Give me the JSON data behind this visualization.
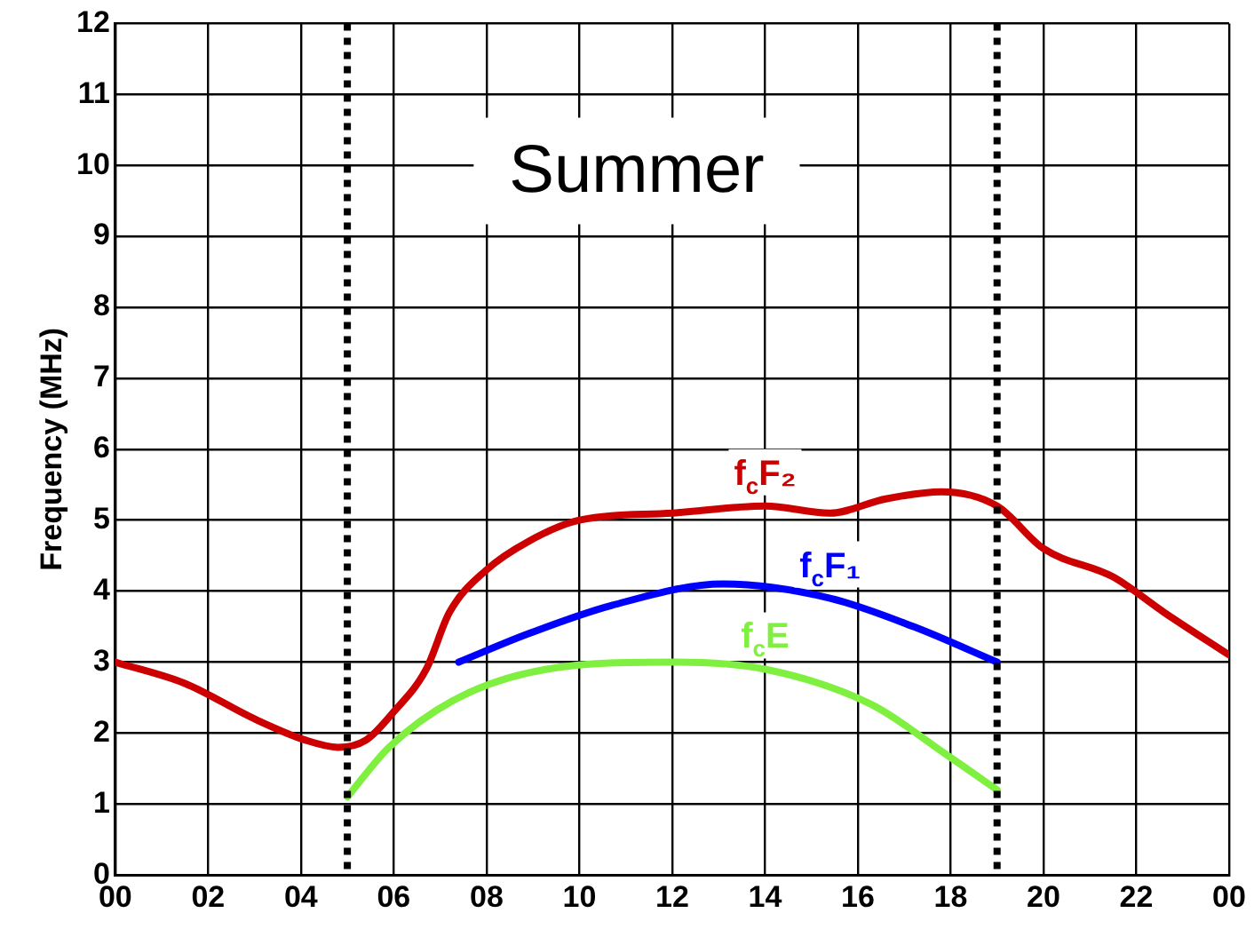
{
  "chart_data": {
    "type": "line",
    "title": "Summer",
    "ylabel": "Frequency (MHz)",
    "xlim": [
      0,
      24
    ],
    "xticks": [
      {
        "value": 0,
        "label": "00"
      },
      {
        "value": 2,
        "label": "02"
      },
      {
        "value": 4,
        "label": "04"
      },
      {
        "value": 6,
        "label": "06"
      },
      {
        "value": 8,
        "label": "08"
      },
      {
        "value": 10,
        "label": "10"
      },
      {
        "value": 12,
        "label": "12"
      },
      {
        "value": 14,
        "label": "14"
      },
      {
        "value": 16,
        "label": "16"
      },
      {
        "value": 18,
        "label": "18"
      },
      {
        "value": 20,
        "label": "20"
      },
      {
        "value": 22,
        "label": "22"
      },
      {
        "value": 24,
        "label": "00"
      }
    ],
    "ylim": [
      0,
      12
    ],
    "yticks": [
      0,
      1,
      2,
      3,
      4,
      5,
      6,
      7,
      8,
      9,
      10,
      11,
      12
    ],
    "grid": true,
    "legend": false,
    "marker": "none",
    "line_style": "solid",
    "ref_lines": [
      {
        "axis": "x",
        "value": 5,
        "color": "#000000",
        "line_style": "dotted"
      },
      {
        "axis": "x",
        "value": 19,
        "color": "#000000",
        "line_style": "dotted"
      }
    ],
    "series": [
      {
        "name": "f$_{c}$F₂",
        "color": "#cc0000",
        "x": [
          0,
          1.5,
          3,
          4.1,
          4.8,
          5.4,
          6,
          6.7,
          7.2,
          8,
          8.9,
          10,
          12,
          14,
          15.4,
          16.6,
          17.8,
          19,
          20,
          21.5,
          22.6,
          24
        ],
        "values": [
          3,
          2.7,
          2.2,
          1.9,
          1.8,
          1.9,
          2.3,
          2.9,
          3.7,
          4.3,
          4.7,
          5,
          5.1,
          5.2,
          5.1,
          5.3,
          5.4,
          5.2,
          4.6,
          4.2,
          3.7,
          3.1
        ]
      },
      {
        "name": "f$_{c}$F₁",
        "color": "#0000ff",
        "x": [
          7.4,
          8.9,
          10.7,
          13.1,
          15.4,
          17.2,
          19
        ],
        "values": [
          3,
          3.4,
          3.8,
          4.1,
          3.9,
          3.5,
          3
        ]
      },
      {
        "name": "f$_{c}$E",
        "color": "#80f040",
        "x": [
          5,
          5.9,
          7.4,
          9.3,
          12,
          14,
          16.3,
          17.9,
          19
        ],
        "values": [
          1.1,
          1.8,
          2.5,
          2.9,
          3,
          2.9,
          2.4,
          1.7,
          1.2
        ]
      }
    ]
  }
}
